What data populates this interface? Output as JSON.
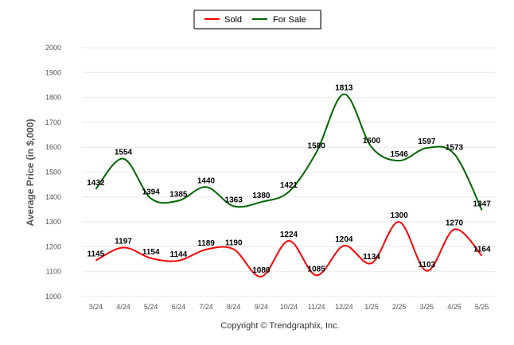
{
  "chart_data": {
    "type": "line",
    "categories": [
      "3/24",
      "4/24",
      "5/24",
      "6/24",
      "7/24",
      "8/24",
      "9/24",
      "10/24",
      "11/24",
      "12/24",
      "1/25",
      "2/25",
      "3/25",
      "4/25",
      "5/25"
    ],
    "series": [
      {
        "name": "Sold",
        "color": "#ff0000",
        "values": [
          1145,
          1197,
          1154,
          1144,
          1189,
          1190,
          1080,
          1224,
          1085,
          1204,
          1134,
          1300,
          1103,
          1270,
          1164
        ]
      },
      {
        "name": "For Sale",
        "color": "#006600",
        "values": [
          1432,
          1554,
          1394,
          1385,
          1440,
          1363,
          1380,
          1421,
          1580,
          1813,
          1600,
          1546,
          1597,
          1573,
          1347
        ]
      }
    ],
    "ylabel": "Average Price (in $,000)",
    "ylim": [
      1000,
      2000
    ],
    "yticks": [
      1000,
      1100,
      1200,
      1300,
      1400,
      1500,
      1600,
      1700,
      1800,
      1900,
      2000
    ],
    "grid": true,
    "legend": "top-center",
    "copyright": "Copyright © Trendgraphix, Inc."
  }
}
